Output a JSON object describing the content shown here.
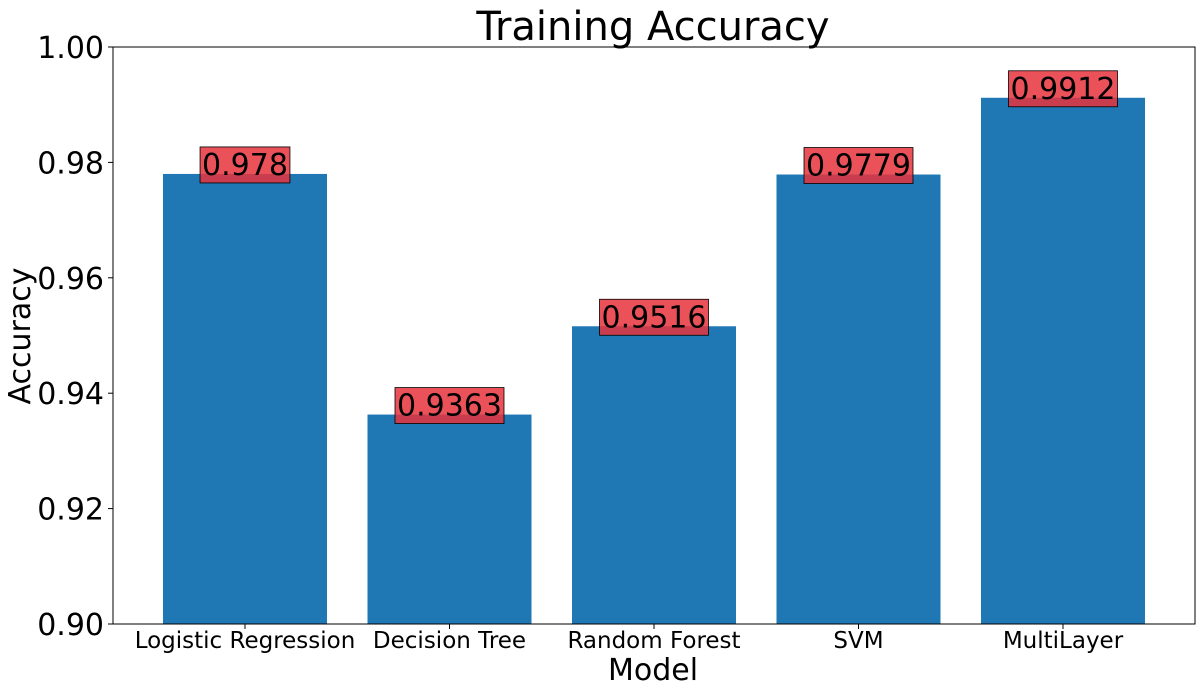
{
  "chart_data": {
    "type": "bar",
    "title": "Training Accuracy",
    "xlabel": "Model",
    "ylabel": "Accuracy",
    "categories": [
      "Logistic Regression",
      "Decision Tree",
      "Random Forest",
      "SVM",
      "MultiLayer"
    ],
    "values": [
      0.978,
      0.9363,
      0.9516,
      0.9779,
      0.9912
    ],
    "value_labels": [
      "0.978",
      "0.9363",
      "0.9516",
      "0.9779",
      "0.9912"
    ],
    "ylim": [
      0.9,
      1.0
    ],
    "yticks": [
      0.9,
      0.92,
      0.94,
      0.96,
      0.98,
      1.0
    ],
    "ytick_labels": [
      "0.90",
      "0.92",
      "0.94",
      "0.96",
      "0.98",
      "1.00"
    ],
    "grid": false,
    "legend": "none",
    "colors": {
      "bar": "#1f77b4",
      "label_box": "#e8323c",
      "label_box_edge": "#000000"
    }
  }
}
